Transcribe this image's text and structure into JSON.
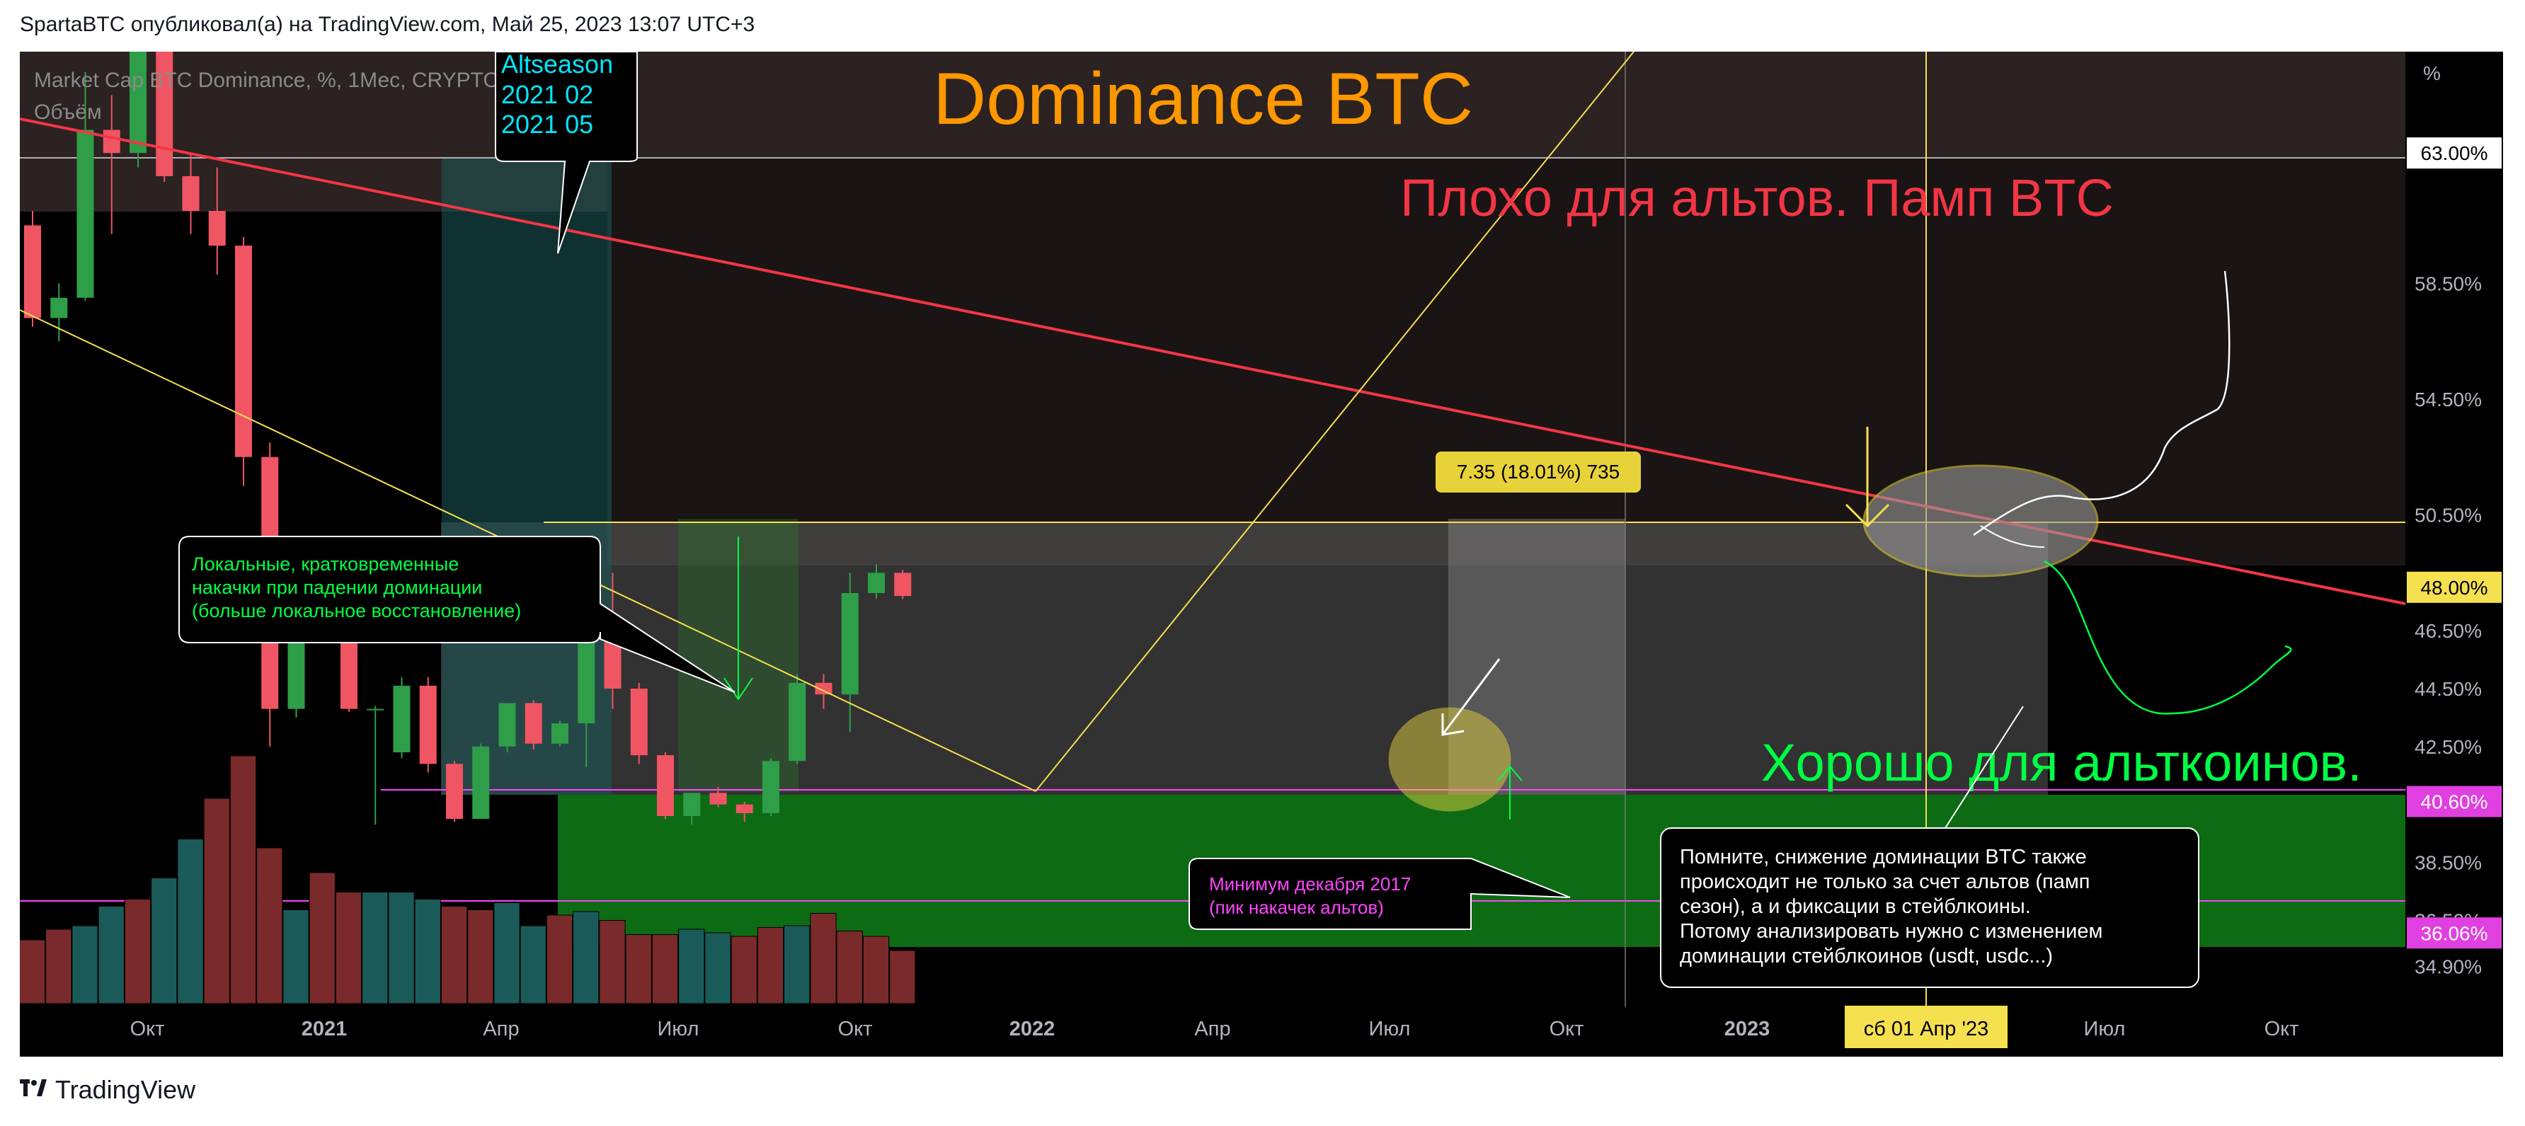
{
  "header": {
    "publish_line": "SpartaBTC опубликовал(а) на TradingView.com, Май 25, 2023 13:07 UTC+3"
  },
  "footer": {
    "brand": "TradingView",
    "logo_icon": "tradingview-logo-icon"
  },
  "chart_data": {
    "type": "candlestick",
    "symbol_line": "Market Cap BTC Dominance, %, 1Мес, CRYPTOCAP",
    "volume_label": "Объём",
    "price_unit": "%",
    "title": "Dominance BTC",
    "x_tick_labels": [
      "Окт",
      "2021",
      "Апр",
      "Июл",
      "Окт",
      "2022",
      "Апр",
      "Июл",
      "Окт",
      "2023",
      "Июл",
      "Окт"
    ],
    "y_tick_labels": [
      "62.95%",
      "58.50%",
      "54.50%",
      "50.50%",
      "46.50%",
      "44.50%",
      "42.50%",
      "38.50%",
      "36.50%",
      "34.90%"
    ],
    "y_range_pct": [
      33.5,
      66.5
    ],
    "price_badges": [
      {
        "value": "63.00%",
        "style": "white"
      },
      {
        "value": "48.00%",
        "style": "yellow"
      },
      {
        "value": "40.60%",
        "style": "magenta"
      },
      {
        "value": "36.06%",
        "style": "magenta"
      }
    ],
    "crosshair_date": "сб 01 Апр '23",
    "candles": [
      {
        "o": 60.5,
        "h": 61.0,
        "l": 57.0,
        "c": 57.3
      },
      {
        "o": 57.3,
        "h": 58.5,
        "l": 56.5,
        "c": 58.0
      },
      {
        "o": 58.0,
        "h": 65.8,
        "l": 57.9,
        "c": 63.8
      },
      {
        "o": 63.8,
        "h": 65.0,
        "l": 60.2,
        "c": 63.0
      },
      {
        "o": 63.0,
        "h": 73.5,
        "l": 62.5,
        "c": 71.0
      },
      {
        "o": 71.0,
        "h": 72.0,
        "l": 62.0,
        "c": 62.2
      },
      {
        "o": 62.2,
        "h": 63.0,
        "l": 60.2,
        "c": 61.0
      },
      {
        "o": 61.0,
        "h": 62.5,
        "l": 58.8,
        "c": 59.8
      },
      {
        "o": 59.8,
        "h": 60.1,
        "l": 51.5,
        "c": 52.5
      },
      {
        "o": 52.5,
        "h": 53.0,
        "l": 42.5,
        "c": 43.8
      },
      {
        "o": 43.8,
        "h": 47.8,
        "l": 43.5,
        "c": 46.9
      },
      {
        "o": 46.9,
        "h": 48.6,
        "l": 46.5,
        "c": 48.0
      },
      {
        "o": 48.0,
        "h": 48.4,
        "l": 43.7,
        "c": 43.8
      },
      {
        "o": 43.8,
        "h": 43.9,
        "l": 39.8,
        "c": 43.8
      },
      {
        "o": 42.3,
        "h": 44.9,
        "l": 42.1,
        "c": 44.6
      },
      {
        "o": 44.6,
        "h": 44.9,
        "l": 41.6,
        "c": 41.9
      },
      {
        "o": 41.9,
        "h": 42.0,
        "l": 39.9,
        "c": 40.0
      },
      {
        "o": 40.0,
        "h": 42.6,
        "l": 40.0,
        "c": 42.5
      },
      {
        "o": 42.5,
        "h": 44.0,
        "l": 42.3,
        "c": 44.0
      },
      {
        "o": 44.0,
        "h": 44.1,
        "l": 42.4,
        "c": 42.6
      },
      {
        "o": 42.6,
        "h": 43.4,
        "l": 42.5,
        "c": 43.3
      },
      {
        "o": 43.3,
        "h": 47.0,
        "l": 41.8,
        "c": 47.0
      },
      {
        "o": 47.0,
        "h": 48.5,
        "l": 43.8,
        "c": 44.5
      },
      {
        "o": 44.5,
        "h": 44.7,
        "l": 41.9,
        "c": 42.2
      },
      {
        "o": 42.2,
        "h": 42.3,
        "l": 40.0,
        "c": 40.1
      },
      {
        "o": 40.1,
        "h": 40.9,
        "l": 39.8,
        "c": 40.9
      },
      {
        "o": 40.9,
        "h": 41.1,
        "l": 40.4,
        "c": 40.5
      },
      {
        "o": 40.5,
        "h": 40.6,
        "l": 39.9,
        "c": 40.2
      },
      {
        "o": 40.2,
        "h": 42.1,
        "l": 40.1,
        "c": 42.0
      },
      {
        "o": 42.0,
        "h": 45.0,
        "l": 41.9,
        "c": 44.7
      },
      {
        "o": 44.7,
        "h": 45.0,
        "l": 43.8,
        "c": 44.3
      },
      {
        "o": 44.3,
        "h": 48.5,
        "l": 43.0,
        "c": 47.8
      },
      {
        "o": 47.8,
        "h": 48.8,
        "l": 47.6,
        "c": 48.5
      },
      {
        "o": 48.5,
        "h": 48.6,
        "l": 47.6,
        "c": 47.7
      }
    ],
    "volume_bull": [
      false,
      false,
      true,
      true,
      false,
      true,
      true,
      false,
      false,
      false,
      true,
      false,
      false,
      true,
      true,
      true,
      false,
      false,
      true,
      true,
      false,
      true,
      false,
      false,
      false,
      true,
      true,
      false,
      false,
      true,
      false,
      false,
      false,
      false
    ],
    "volume_rel": [
      0.36,
      0.42,
      0.44,
      0.55,
      0.59,
      0.71,
      0.93,
      1.16,
      1.4,
      0.88,
      0.53,
      0.74,
      0.63,
      0.63,
      0.63,
      0.59,
      0.55,
      0.53,
      0.57,
      0.44,
      0.5,
      0.52,
      0.47,
      0.39,
      0.39,
      0.42,
      0.4,
      0.38,
      0.43,
      0.44,
      0.51,
      0.41,
      0.38,
      0.3
    ],
    "annotations": {
      "bad_for_alts": "Плохо для альтов. Памп BTC",
      "good_for_alts": "Хорошо для альткоинов.",
      "altseason_lines": [
        "Altseason",
        "2021 02",
        "2021 05"
      ],
      "local_pumps_lines": [
        "Локальные, кратковременные",
        "накачки при падении доминации",
        "(больше локальное восстановление)"
      ],
      "min_2017_lines": [
        "Минимум декабря 2017",
        "(пик накачек альтов)"
      ],
      "measure": "7.35 (18.01%) 735",
      "note_lines": [
        "Помните, снижение доминации BTC также",
        "происходит не только за счет альтов (памп",
        "сезон), а и фиксации в стейблкоины.",
        "Потому анализировать нужно с изменением",
        "доминации стейблкоинов (usdt, usdc...)"
      ]
    }
  }
}
